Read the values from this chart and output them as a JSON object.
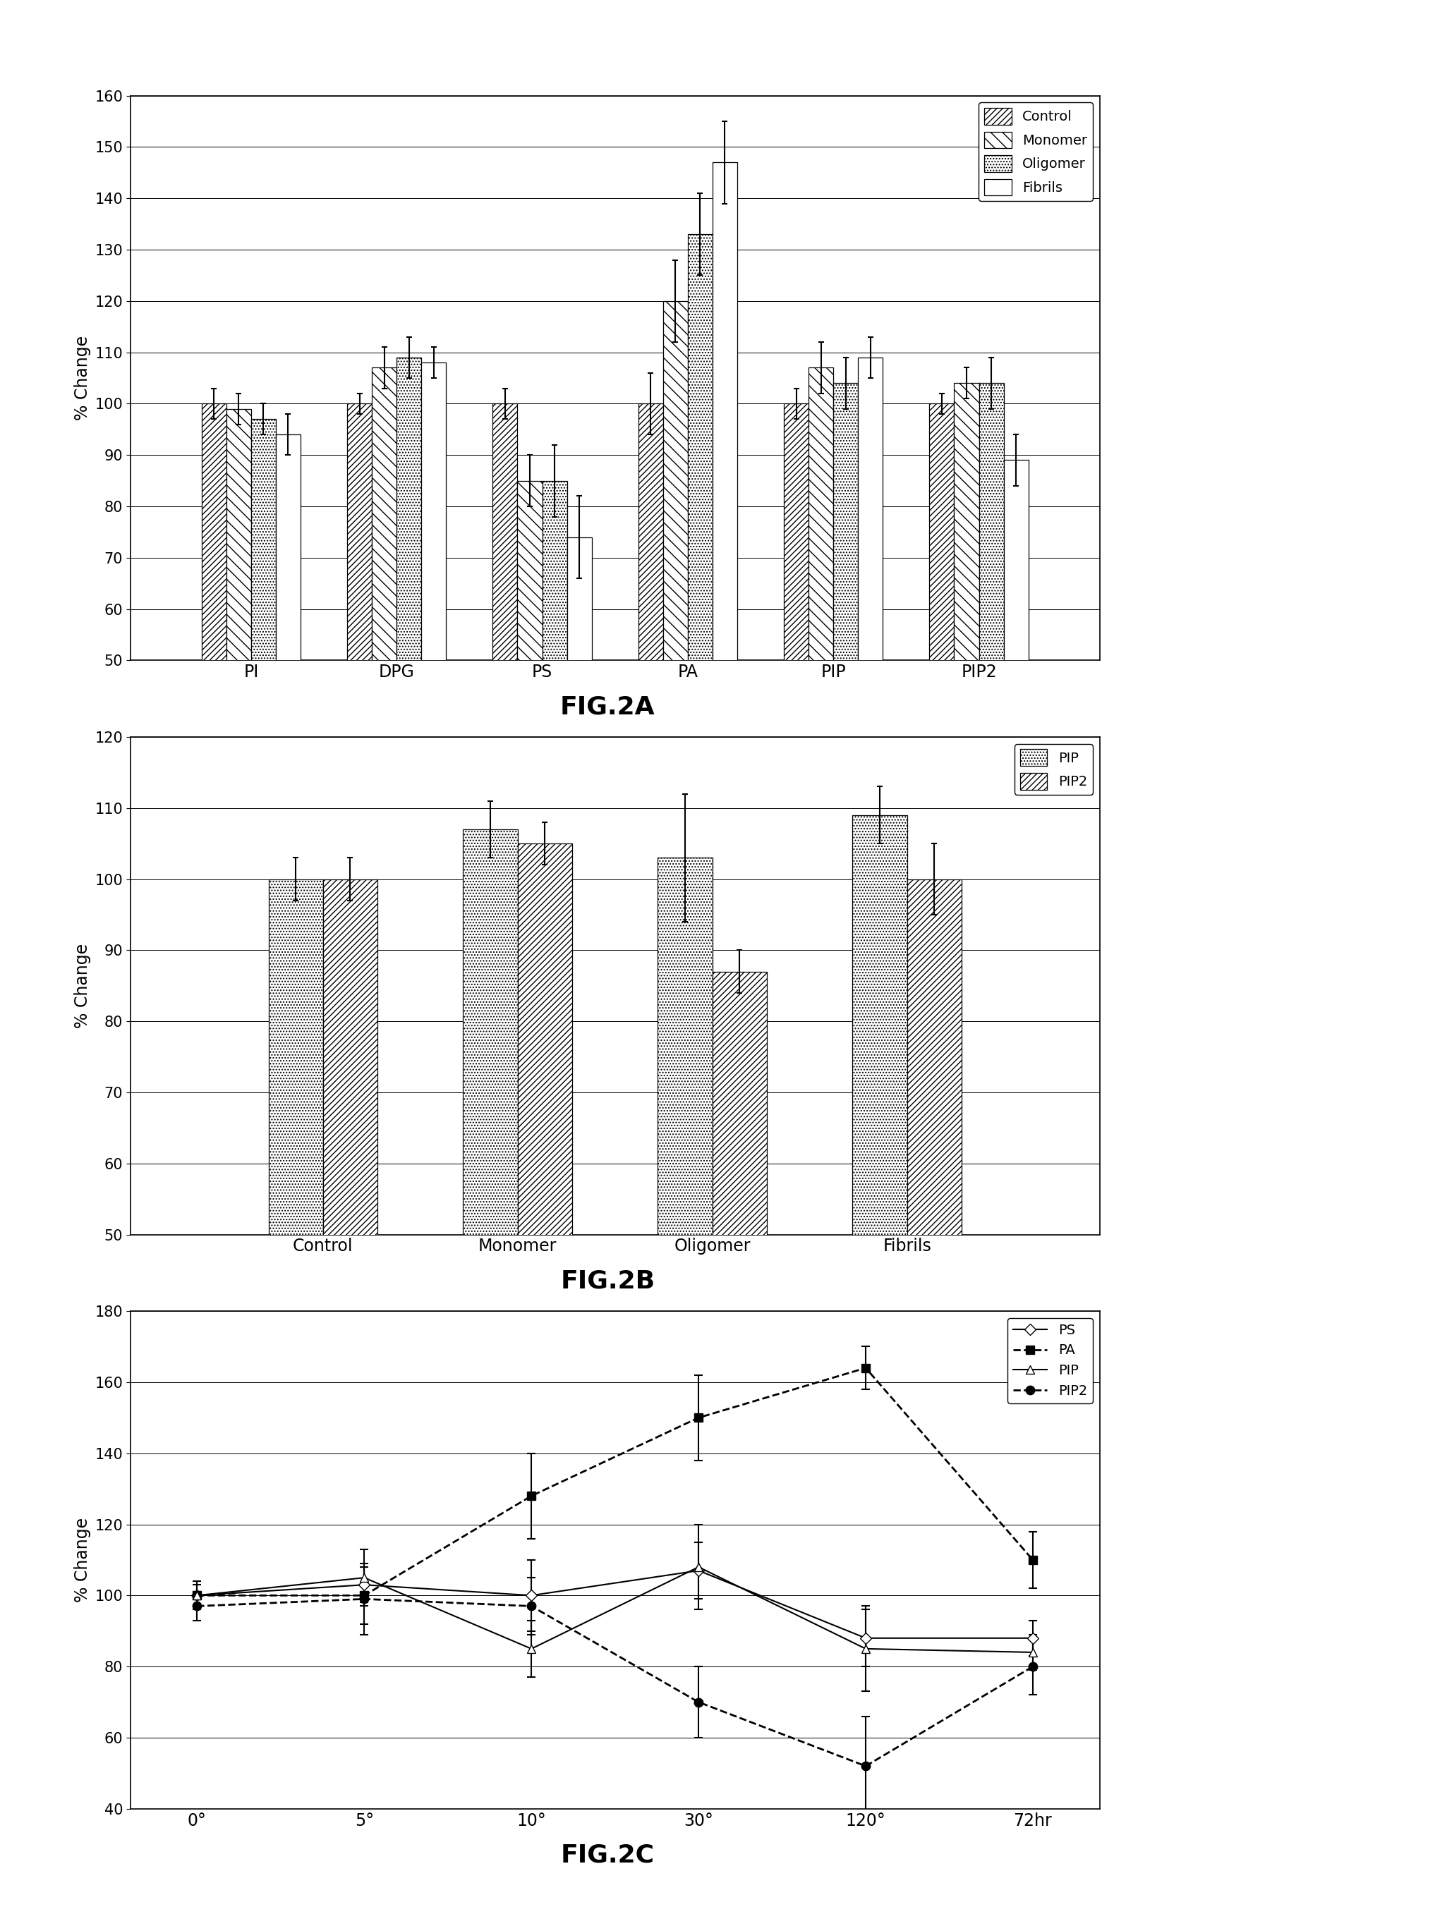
{
  "fig2a": {
    "groups": [
      "PI",
      "DPG",
      "PS",
      "PA",
      "PIP",
      "PIP2"
    ],
    "series": [
      "Control",
      "Monomer",
      "Oligomer",
      "Fibrils"
    ],
    "values": [
      [
        100,
        100,
        100,
        100,
        100,
        100
      ],
      [
        99,
        107,
        85,
        120,
        107,
        104
      ],
      [
        97,
        109,
        85,
        133,
        104,
        104
      ],
      [
        94,
        108,
        74,
        147,
        109,
        89
      ]
    ],
    "errors": [
      [
        3,
        2,
        3,
        6,
        3,
        2
      ],
      [
        3,
        4,
        5,
        8,
        5,
        3
      ],
      [
        3,
        4,
        7,
        8,
        5,
        5
      ],
      [
        4,
        3,
        8,
        8,
        4,
        5
      ]
    ],
    "ylabel": "% Change",
    "ylim": [
      50,
      160
    ],
    "yticks": [
      50,
      60,
      70,
      80,
      90,
      100,
      110,
      120,
      130,
      140,
      150,
      160
    ],
    "figlabel": "FIG.2A"
  },
  "fig2b": {
    "groups": [
      "Control",
      "Monomer",
      "Oligomer",
      "Fibrils"
    ],
    "series": [
      "PIP",
      "PIP2"
    ],
    "values": [
      [
        100,
        107,
        103,
        109
      ],
      [
        100,
        105,
        87,
        100
      ]
    ],
    "errors": [
      [
        3,
        4,
        9,
        4
      ],
      [
        3,
        3,
        3,
        5
      ]
    ],
    "ylabel": "% Change",
    "ylim": [
      50,
      120
    ],
    "yticks": [
      50,
      60,
      70,
      80,
      90,
      100,
      110,
      120
    ],
    "figlabel": "FIG.2B"
  },
  "fig2c": {
    "xticklabels": [
      "0°",
      "5°",
      "10°",
      "30°",
      "120°",
      "72hr"
    ],
    "series": [
      "PS",
      "PA",
      "PIP",
      "PIP2"
    ],
    "values": [
      [
        100,
        103,
        100,
        107,
        88,
        88
      ],
      [
        100,
        100,
        128,
        150,
        164,
        110
      ],
      [
        100,
        105,
        85,
        108,
        85,
        84
      ],
      [
        97,
        99,
        97,
        70,
        52,
        80
      ]
    ],
    "errors": [
      [
        3,
        5,
        10,
        8,
        8,
        5
      ],
      [
        4,
        8,
        12,
        12,
        6,
        8
      ],
      [
        4,
        8,
        8,
        12,
        12,
        5
      ],
      [
        4,
        10,
        8,
        10,
        14,
        8
      ]
    ],
    "ylabel": "% Change",
    "ylim": [
      40,
      180
    ],
    "yticks": [
      40,
      60,
      80,
      100,
      120,
      140,
      160,
      180
    ],
    "figlabel": "FIG.2C"
  }
}
